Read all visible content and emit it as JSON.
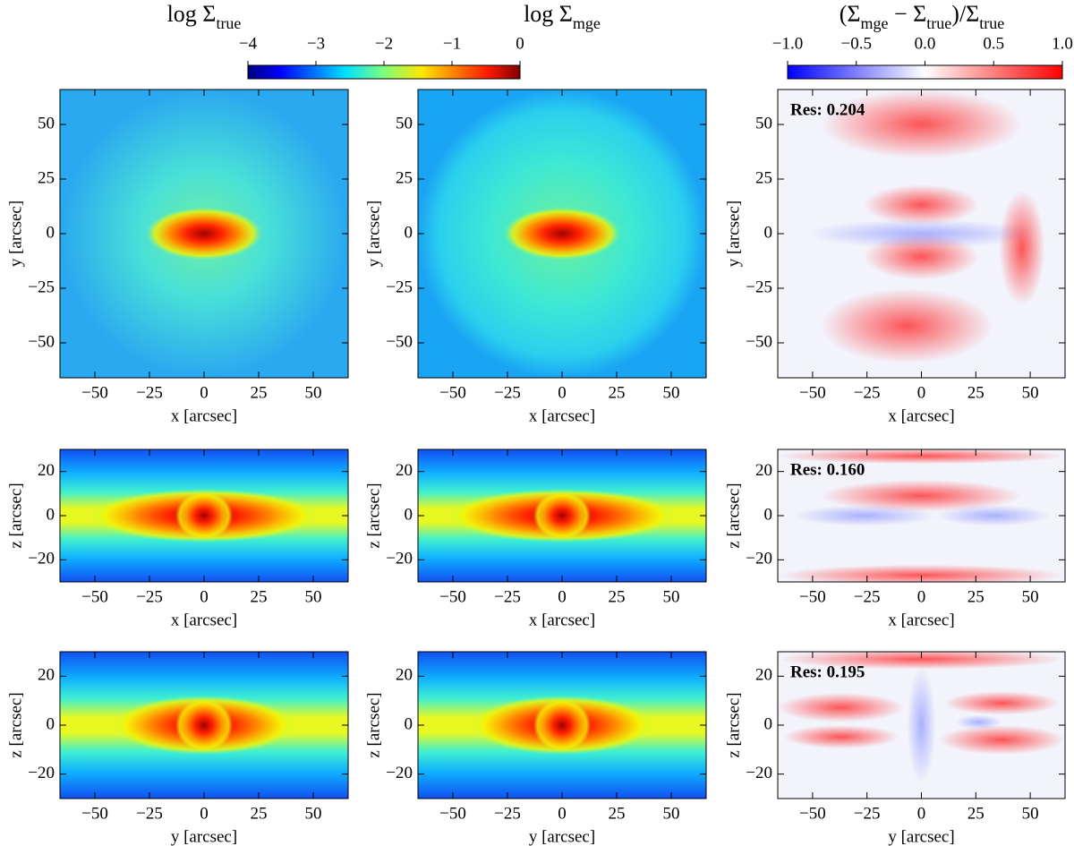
{
  "column_titles": [
    [
      "log Σ",
      "true"
    ],
    [
      "log Σ",
      "mge"
    ],
    [
      "(Σ",
      "mge",
      " − Σ",
      "true",
      ")/Σ",
      "true"
    ]
  ],
  "colorbars": [
    {
      "colormap": "jet",
      "lim": [
        -4,
        0
      ],
      "ticks": [
        {
          "value": -4,
          "label": "−4"
        },
        {
          "value": -3,
          "label": "−3"
        },
        {
          "value": -2,
          "label": "−2"
        },
        {
          "value": -1,
          "label": "−1"
        },
        0
      ]
    },
    {
      "colormap": "bwr",
      "lim": [
        -1,
        1
      ],
      "ticks": [
        {
          "value": -1,
          "label": "−1.0"
        },
        {
          "value": -0.5,
          "label": "−0.5"
        },
        {
          "value": 0,
          "label": "0.0"
        },
        {
          "value": 0.5,
          "label": "0.5"
        },
        {
          "value": 1,
          "label": "1.0"
        }
      ]
    }
  ],
  "chart_data": [
    {
      "type": "heatmap",
      "colormap": "jet",
      "view": "xy",
      "xlabel": "x [arcsec]",
      "ylabel": "y [arcsec]",
      "xlim": [
        -66,
        66
      ],
      "ylim": [
        -66,
        66
      ],
      "xticks": [
        {
          "value": -50,
          "label": "−50"
        },
        {
          "value": -25,
          "label": "−25"
        },
        0,
        25,
        50
      ],
      "yticks": [
        {
          "value": -50,
          "label": "−50"
        },
        {
          "value": -25,
          "label": "−25"
        },
        0,
        25,
        50
      ]
    },
    {
      "type": "heatmap",
      "colormap": "jet",
      "view": "xy",
      "xlabel": "x [arcsec]",
      "ylabel": "y [arcsec]",
      "xlim": [
        -66,
        66
      ],
      "ylim": [
        -66,
        66
      ],
      "xticks": [
        {
          "value": -50,
          "label": "−50"
        },
        {
          "value": -25,
          "label": "−25"
        },
        0,
        25,
        50
      ],
      "yticks": [
        {
          "value": -50,
          "label": "−50"
        },
        {
          "value": -25,
          "label": "−25"
        },
        0,
        25,
        50
      ]
    },
    {
      "type": "heatmap",
      "colormap": "bwr",
      "view": "xy",
      "xlabel": "x [arcsec]",
      "ylabel": "y [arcsec]",
      "xlim": [
        -66,
        66
      ],
      "ylim": [
        -66,
        66
      ],
      "annotation": "Res: 0.204",
      "xticks": [
        {
          "value": -50,
          "label": "−50"
        },
        {
          "value": -25,
          "label": "−25"
        },
        0,
        25,
        50
      ],
      "yticks": [
        {
          "value": -50,
          "label": "−50"
        },
        {
          "value": -25,
          "label": "−25"
        },
        0,
        25,
        50
      ]
    },
    {
      "type": "heatmap",
      "colormap": "jet",
      "view": "xz",
      "xlabel": "x [arcsec]",
      "ylabel": "z [arcsec]",
      "xlim": [
        -66,
        66
      ],
      "ylim": [
        -30,
        30
      ],
      "xticks": [
        {
          "value": -50,
          "label": "−50"
        },
        {
          "value": -25,
          "label": "−25"
        },
        0,
        25,
        50
      ],
      "yticks": [
        {
          "value": -20,
          "label": "−20"
        },
        0,
        20
      ]
    },
    {
      "type": "heatmap",
      "colormap": "jet",
      "view": "xz",
      "xlabel": "x [arcsec]",
      "ylabel": "z [arcsec]",
      "xlim": [
        -66,
        66
      ],
      "ylim": [
        -30,
        30
      ],
      "xticks": [
        {
          "value": -50,
          "label": "−50"
        },
        {
          "value": -25,
          "label": "−25"
        },
        0,
        25,
        50
      ],
      "yticks": [
        {
          "value": -20,
          "label": "−20"
        },
        0,
        20
      ]
    },
    {
      "type": "heatmap",
      "colormap": "bwr",
      "view": "xz",
      "xlabel": "x [arcsec]",
      "ylabel": "z [arcsec]",
      "xlim": [
        -66,
        66
      ],
      "ylim": [
        -30,
        30
      ],
      "annotation": "Res: 0.160",
      "xticks": [
        {
          "value": -50,
          "label": "−50"
        },
        {
          "value": -25,
          "label": "−25"
        },
        0,
        25,
        50
      ],
      "yticks": [
        {
          "value": -20,
          "label": "−20"
        },
        0,
        20
      ]
    },
    {
      "type": "heatmap",
      "colormap": "jet",
      "view": "yz",
      "xlabel": "y [arcsec]",
      "ylabel": "z [arcsec]",
      "xlim": [
        -66,
        66
      ],
      "ylim": [
        -30,
        30
      ],
      "xticks": [
        {
          "value": -50,
          "label": "−50"
        },
        {
          "value": -25,
          "label": "−25"
        },
        0,
        25,
        50
      ],
      "yticks": [
        {
          "value": -20,
          "label": "−20"
        },
        0,
        20
      ]
    },
    {
      "type": "heatmap",
      "colormap": "jet",
      "view": "yz",
      "xlabel": "y [arcsec]",
      "ylabel": "z [arcsec]",
      "xlim": [
        -66,
        66
      ],
      "ylim": [
        -30,
        30
      ],
      "xticks": [
        {
          "value": -50,
          "label": "−50"
        },
        {
          "value": -25,
          "label": "−25"
        },
        0,
        25,
        50
      ],
      "yticks": [
        {
          "value": -20,
          "label": "−20"
        },
        0,
        20
      ]
    },
    {
      "type": "heatmap",
      "colormap": "bwr",
      "view": "yz",
      "xlabel": "y [arcsec]",
      "ylabel": "z [arcsec]",
      "xlim": [
        -66,
        66
      ],
      "ylim": [
        -30,
        30
      ],
      "annotation": "Res: 0.195",
      "xticks": [
        {
          "value": -50,
          "label": "−50"
        },
        {
          "value": -25,
          "label": "−25"
        },
        0,
        25,
        50
      ],
      "yticks": [
        {
          "value": -20,
          "label": "−20"
        },
        0,
        20
      ]
    }
  ]
}
